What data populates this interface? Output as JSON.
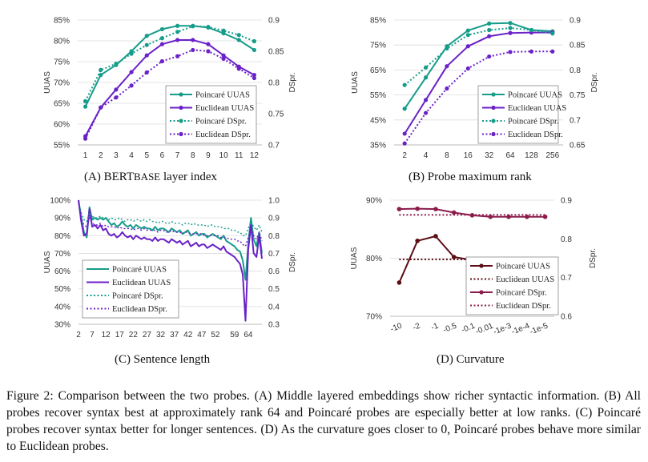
{
  "colors": {
    "poincare": "#169c8a",
    "euclidean": "#6a21c8",
    "curv_poincare": "#8c1c4c",
    "curv_euclidean": "#5a0d14",
    "grid": "#dcdcdc",
    "axis": "#bbbbbb"
  },
  "captions": {
    "a_main": "(A) BERT",
    "a_sc": "BASE",
    "a_tail": " layer index",
    "b": "(B) Probe maximum rank",
    "c": "(C) Sentence length",
    "d": "(D) Curvature"
  },
  "figure_caption": "Figure 2: Comparison between the two probes. (A) Middle layered embeddings show richer syntactic information. (B) All probes recover syntax best at approximately rank 64 and Poincaré probes are especially better at low ranks. (C) Poincaré probes recover syntax better for longer sentences. (D) As the curvature goes closer to 0, Poincaré probes behave more similar to Euclidean probes.",
  "chart_data": [
    {
      "id": "A",
      "type": "line",
      "xlabel": "",
      "ylabel": "UUAS",
      "y2label": "DSpr.",
      "categories": [
        "1",
        "2",
        "3",
        "4",
        "5",
        "6",
        "7",
        "8",
        "9",
        "10",
        "11",
        "12"
      ],
      "yticks": [
        "55%",
        "60%",
        "65%",
        "70%",
        "75%",
        "80%",
        "85%"
      ],
      "ylim": [
        55,
        85
      ],
      "y2ticks": [
        "0.7",
        "0.75",
        "0.8",
        "0.85",
        "0.9"
      ],
      "y2lim": [
        0.7,
        0.9
      ],
      "legend_position": "inside-right",
      "series": [
        {
          "name": "Poincaré UUAS",
          "axis": "left",
          "style": "solid",
          "color": "poincare",
          "values": [
            64.2,
            71.8,
            74.2,
            77.5,
            81.2,
            82.8,
            83.6,
            83.6,
            83.2,
            81.8,
            80.2,
            77.8
          ]
        },
        {
          "name": "Euclidean UUAS",
          "axis": "left",
          "style": "solid",
          "color": "euclidean",
          "values": [
            57.1,
            64.0,
            68.3,
            72.5,
            76.5,
            79.2,
            80.2,
            80.2,
            79.2,
            76.5,
            73.8,
            71.8
          ]
        },
        {
          "name": "Poincaré DSpr.",
          "axis": "right",
          "style": "dotted",
          "color": "poincare",
          "values": [
            0.77,
            0.82,
            0.83,
            0.846,
            0.86,
            0.871,
            0.881,
            0.89,
            0.889,
            0.883,
            0.876,
            0.866
          ]
        },
        {
          "name": "Euclidean DSpr.",
          "axis": "right",
          "style": "dotted",
          "color": "euclidean",
          "values": [
            0.71,
            0.76,
            0.776,
            0.795,
            0.816,
            0.834,
            0.842,
            0.852,
            0.85,
            0.838,
            0.822,
            0.807
          ]
        }
      ]
    },
    {
      "id": "B",
      "type": "line",
      "xlabel": "",
      "ylabel": "UUAS",
      "y2label": "DSpr.",
      "categories": [
        "2",
        "4",
        "8",
        "16",
        "32",
        "64",
        "128",
        "256"
      ],
      "yticks": [
        "35%",
        "45%",
        "55%",
        "65%",
        "75%",
        "85%"
      ],
      "ylim": [
        35,
        85
      ],
      "y2ticks": [
        "0.65",
        "0.7",
        "0.75",
        "0.8",
        "0.85",
        "0.9"
      ],
      "y2lim": [
        0.65,
        0.9
      ],
      "legend_position": "inside-right",
      "series": [
        {
          "name": "Poincaré UUAS",
          "axis": "left",
          "style": "solid",
          "color": "poincare",
          "values": [
            49.5,
            62.0,
            74.5,
            80.8,
            83.6,
            83.8,
            81.0,
            80.5
          ]
        },
        {
          "name": "Euclidean UUAS",
          "axis": "left",
          "style": "solid",
          "color": "euclidean",
          "values": [
            39.5,
            53.0,
            66.5,
            74.5,
            78.5,
            79.8,
            80.0,
            80.0
          ]
        },
        {
          "name": "Poincaré DSpr.",
          "axis": "right",
          "style": "dotted",
          "color": "poincare",
          "values": [
            0.77,
            0.805,
            0.843,
            0.87,
            0.88,
            0.884,
            0.88,
            0.873
          ]
        },
        {
          "name": "Euclidean DSpr.",
          "axis": "right",
          "style": "dotted",
          "color": "euclidean",
          "values": [
            0.653,
            0.714,
            0.763,
            0.803,
            0.827,
            0.836,
            0.837,
            0.837
          ]
        }
      ]
    },
    {
      "id": "C",
      "type": "line",
      "xlabel": "",
      "ylabel": "UUAS",
      "y2label": "DSpr.",
      "x_start": 2,
      "x_end": 67,
      "xticks": [
        "2",
        "7",
        "12",
        "17",
        "22",
        "27",
        "32",
        "37",
        "42",
        "47",
        "52",
        "59",
        "64"
      ],
      "yticks": [
        "30%",
        "40%",
        "50%",
        "60%",
        "70%",
        "80%",
        "90%",
        "100%"
      ],
      "ylim": [
        30,
        100
      ],
      "y2ticks": [
        "0.3",
        "0.4",
        "0.5",
        "0.6",
        "0.7",
        "0.8",
        "0.9",
        "1.0"
      ],
      "y2lim": [
        0.3,
        1.0
      ],
      "legend_position": "inside-left",
      "series": [
        {
          "name": "Poincaré UUAS",
          "axis": "left",
          "style": "solid",
          "color": "poincare",
          "values": [
            100,
            90,
            82,
            79,
            96,
            89,
            90,
            89,
            90,
            89,
            90,
            88,
            86,
            87,
            85,
            86,
            88,
            86,
            85,
            86,
            84,
            86,
            85,
            84,
            85,
            84,
            84,
            83,
            85,
            83,
            84,
            84,
            83,
            82,
            84,
            83,
            82,
            83,
            81,
            82,
            83,
            80,
            81,
            82,
            80,
            81,
            81,
            79,
            80,
            81,
            80,
            79,
            78,
            80,
            77,
            76,
            75,
            74,
            72,
            71,
            66,
            55,
            75,
            90,
            78,
            74,
            82,
            70
          ]
        },
        {
          "name": "Euclidean UUAS",
          "axis": "left",
          "style": "solid",
          "color": "euclidean",
          "values": [
            100,
            88,
            80,
            81,
            95,
            85,
            86,
            84,
            86,
            83,
            84,
            81,
            80,
            81,
            79,
            80,
            82,
            80,
            79,
            80,
            78,
            80,
            79,
            78,
            79,
            78,
            78,
            77,
            79,
            77,
            78,
            78,
            77,
            76,
            78,
            77,
            76,
            77,
            75,
            76,
            77,
            74,
            75,
            76,
            74,
            75,
            75,
            73,
            74,
            75,
            74,
            73,
            72,
            74,
            71,
            70,
            69,
            68,
            66,
            64,
            58,
            32,
            72,
            86,
            70,
            68,
            80,
            67
          ]
        },
        {
          "name": "Poincaré DSpr.",
          "axis": "right",
          "style": "dotted",
          "color": "poincare",
          "values": [
            0.99,
            0.93,
            0.89,
            0.88,
            0.93,
            0.91,
            0.9,
            0.9,
            0.91,
            0.9,
            0.9,
            0.89,
            0.9,
            0.89,
            0.89,
            0.9,
            0.89,
            0.88,
            0.89,
            0.89,
            0.88,
            0.89,
            0.89,
            0.88,
            0.89,
            0.88,
            0.89,
            0.88,
            0.88,
            0.87,
            0.88,
            0.88,
            0.87,
            0.87,
            0.88,
            0.87,
            0.87,
            0.87,
            0.86,
            0.87,
            0.87,
            0.86,
            0.87,
            0.86,
            0.86,
            0.86,
            0.86,
            0.85,
            0.86,
            0.86,
            0.85,
            0.85,
            0.85,
            0.84,
            0.84,
            0.84,
            0.83,
            0.83,
            0.82,
            0.82,
            0.8,
            0.8,
            0.84,
            0.88,
            0.85,
            0.83,
            0.86,
            0.82
          ]
        },
        {
          "name": "Euclidean DSpr.",
          "axis": "right",
          "style": "dotted",
          "color": "euclidean",
          "values": [
            0.99,
            0.9,
            0.86,
            0.85,
            0.9,
            0.87,
            0.86,
            0.86,
            0.87,
            0.85,
            0.86,
            0.85,
            0.85,
            0.85,
            0.84,
            0.85,
            0.84,
            0.84,
            0.84,
            0.84,
            0.83,
            0.84,
            0.84,
            0.83,
            0.84,
            0.83,
            0.83,
            0.83,
            0.83,
            0.82,
            0.83,
            0.83,
            0.82,
            0.82,
            0.83,
            0.82,
            0.82,
            0.82,
            0.81,
            0.82,
            0.82,
            0.81,
            0.81,
            0.81,
            0.81,
            0.81,
            0.8,
            0.8,
            0.8,
            0.8,
            0.8,
            0.8,
            0.79,
            0.79,
            0.79,
            0.78,
            0.78,
            0.78,
            0.77,
            0.77,
            0.75,
            0.74,
            0.79,
            0.84,
            0.8,
            0.78,
            0.82,
            0.77
          ]
        }
      ]
    },
    {
      "id": "D",
      "type": "line",
      "xlabel": "",
      "ylabel": "UUAS",
      "y2label": "DSpr.",
      "categories": [
        "-10",
        "-2",
        "-1",
        "-0.5",
        "-0.1",
        "-0.01",
        "-1e-3",
        "-1e-4",
        "-1e-5"
      ],
      "yticks": [
        "70%",
        "80%",
        "90%"
      ],
      "ylim": [
        70,
        90
      ],
      "y2ticks": [
        "0.6",
        "0.7",
        "0.8",
        "0.9"
      ],
      "y2lim": [
        0.6,
        0.9
      ],
      "legend_position": "inside-right",
      "series": [
        {
          "name": "Poincaré UUAS",
          "axis": "left",
          "style": "solid",
          "marker": true,
          "color": "curv_euclidean",
          "values": [
            75.8,
            83.0,
            83.8,
            80.2,
            79.7,
            79.8,
            79.8,
            79.8,
            79.8
          ]
        },
        {
          "name": "Euclidean UUAS",
          "axis": "left",
          "style": "dotted",
          "color": "curv_euclidean",
          "values": [
            79.8,
            79.8,
            79.8,
            79.8,
            79.8,
            79.8,
            79.8,
            79.8,
            79.8
          ]
        },
        {
          "name": "Poincaré DSpr.",
          "axis": "right",
          "style": "solid",
          "marker": true,
          "color": "curv_poincare",
          "values": [
            0.877,
            0.878,
            0.877,
            0.868,
            0.861,
            0.857,
            0.857,
            0.857,
            0.857
          ]
        },
        {
          "name": "Euclidean DSpr.",
          "axis": "right",
          "style": "dotted",
          "color": "curv_poincare",
          "values": [
            0.862,
            0.862,
            0.862,
            0.862,
            0.862,
            0.862,
            0.862,
            0.862,
            0.862
          ]
        }
      ]
    }
  ]
}
